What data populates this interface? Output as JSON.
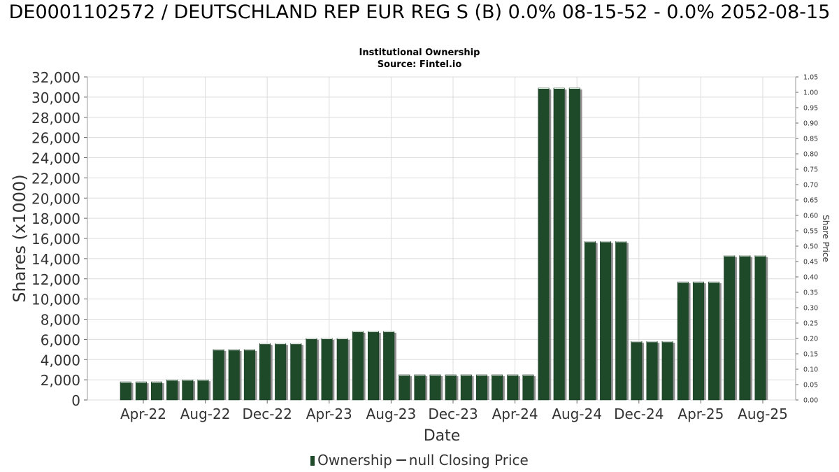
{
  "title": "DE0001102572 / DEUTSCHLAND REP EUR REG S (B) 0.0% 08-15-52 - 0.0% 2052-08-15",
  "subtitle1": "Institutional Ownership",
  "subtitle2": "Source: Fintel.io",
  "colors": {
    "bar": "#1f4a2a",
    "shadow": "#8f8f8f",
    "grid": "#dcdcdc",
    "axis": "#333333"
  },
  "chart_data": {
    "type": "bar",
    "xlabel": "Date",
    "ylabel": "Shares (x1000)",
    "y2label": "Share Price",
    "ylim": [
      0,
      32000
    ],
    "y2lim": [
      0,
      1.05
    ],
    "yticks": [
      "0",
      "2,000",
      "4,000",
      "6,000",
      "8,000",
      "10,000",
      "12,000",
      "14,000",
      "16,000",
      "18,000",
      "20,000",
      "22,000",
      "24,000",
      "26,000",
      "28,000",
      "30,000",
      "32,000"
    ],
    "y2ticks": [
      "0.00",
      "0.05",
      "0.10",
      "0.15",
      "0.20",
      "0.25",
      "0.30",
      "0.35",
      "0.40",
      "0.45",
      "0.50",
      "0.55",
      "0.60",
      "0.65",
      "0.70",
      "0.75",
      "0.80",
      "0.85",
      "0.90",
      "0.95",
      "1.00",
      "1.05"
    ],
    "xtick_labels": [
      "Apr-22",
      "Aug-22",
      "Dec-22",
      "Apr-23",
      "Aug-23",
      "Dec-23",
      "Apr-24",
      "Aug-24",
      "Dec-24",
      "Apr-25",
      "Aug-25"
    ],
    "grid": true,
    "legend_position": "bottom",
    "series": [
      {
        "name": "Ownership",
        "values": [
          1800,
          1800,
          1800,
          2000,
          2000,
          2000,
          5000,
          5000,
          5000,
          5600,
          5600,
          5600,
          6100,
          6100,
          6100,
          6800,
          6800,
          6800,
          2500,
          2500,
          2500,
          2500,
          2500,
          2500,
          2500,
          2500,
          2500,
          30900,
          30900,
          30900,
          15700,
          15700,
          15700,
          5800,
          5800,
          5800,
          11700,
          11700,
          11700,
          14300,
          14300,
          14300
        ]
      }
    ],
    "legend": [
      "Ownership",
      "null Closing Price"
    ]
  }
}
